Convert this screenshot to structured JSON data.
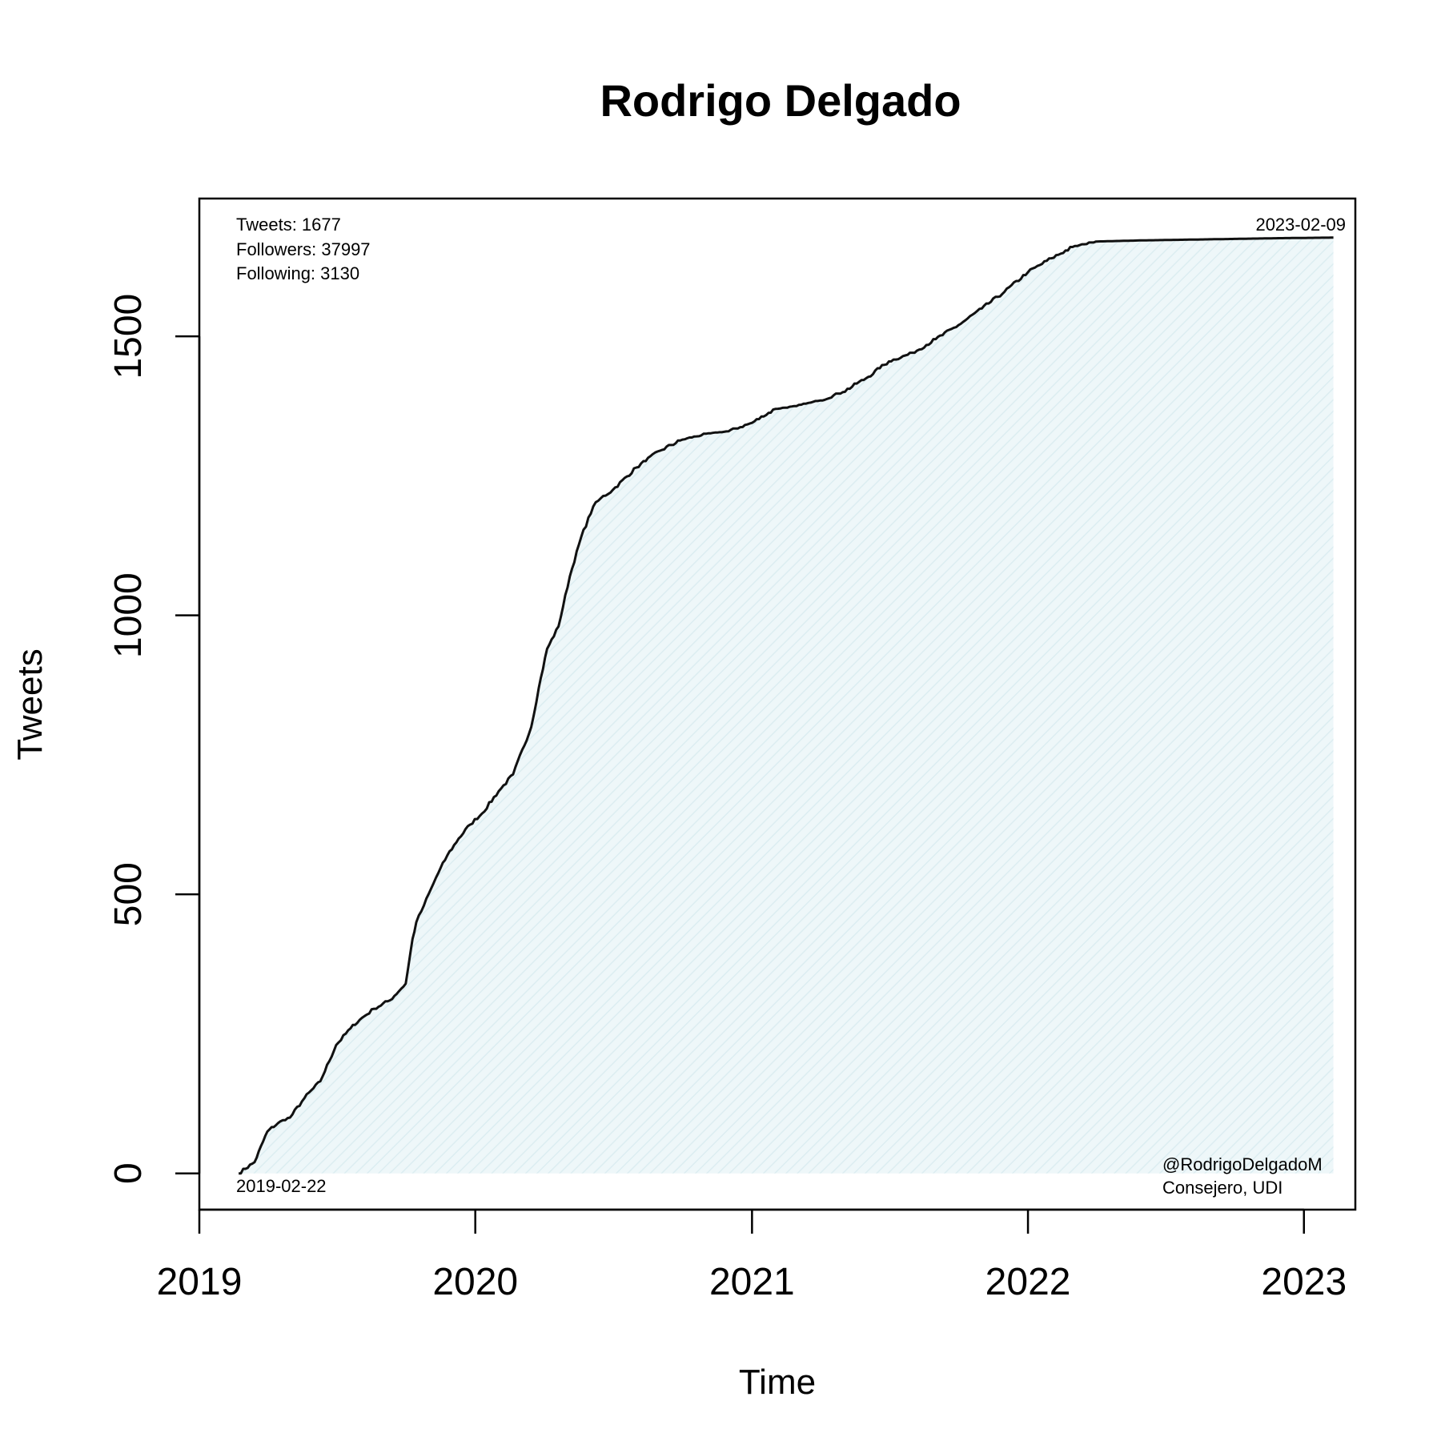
{
  "chart_data": {
    "type": "area",
    "title": "Rodrigo Delgado",
    "xlabel": "Time",
    "ylabel": "Tweets",
    "xlim": [
      "2019-01-01",
      "2023-03-10"
    ],
    "ylim": [
      -65,
      1747
    ],
    "x_ticks": [
      "2019",
      "2020",
      "2021",
      "2022",
      "2023"
    ],
    "y_ticks": [
      0,
      500,
      1000,
      1500
    ],
    "y_tick_labels": [
      "0",
      "500",
      "1000",
      "1500"
    ],
    "grid": false,
    "colors": {
      "line": "#111111",
      "fill": "#eef7f9",
      "hatch": "#ddeef2"
    },
    "series": [
      {
        "x": [
          "2019-02-22",
          "2019-03-15",
          "2019-04-01",
          "2019-04-15",
          "2019-05-01",
          "2019-05-20",
          "2019-06-10",
          "2019-07-01",
          "2019-07-20",
          "2019-08-01",
          "2019-08-20",
          "2019-09-10",
          "2019-10-01",
          "2019-10-10",
          "2019-10-15",
          "2019-10-25",
          "2019-11-10",
          "2019-11-25",
          "2019-12-10",
          "2019-12-25",
          "2020-01-10",
          "2020-02-01",
          "2020-02-20",
          "2020-03-15",
          "2020-03-25",
          "2020-04-05",
          "2020-04-20",
          "2020-05-05",
          "2020-05-20",
          "2020-06-05",
          "2020-06-15",
          "2020-07-01",
          "2020-08-01",
          "2020-09-01",
          "2020-10-01",
          "2020-11-01",
          "2020-12-01",
          "2021-01-01",
          "2021-02-01",
          "2021-03-01",
          "2021-04-01",
          "2021-05-01",
          "2021-06-01",
          "2021-07-01",
          "2021-08-01",
          "2021-09-01",
          "2021-10-01",
          "2021-11-01",
          "2021-12-01",
          "2022-01-01",
          "2022-02-01",
          "2022-03-01",
          "2022-04-01",
          "2022-06-01",
          "2022-09-01",
          "2022-12-01",
          "2023-02-09"
        ],
        "y": [
          0,
          20,
          75,
          90,
          100,
          135,
          165,
          230,
          260,
          275,
          295,
          310,
          340,
          420,
          450,
          480,
          530,
          570,
          600,
          625,
          645,
          685,
          715,
          800,
          870,
          940,
          980,
          1070,
          1140,
          1195,
          1210,
          1225,
          1265,
          1295,
          1315,
          1325,
          1330,
          1345,
          1370,
          1375,
          1385,
          1400,
          1425,
          1455,
          1470,
          1495,
          1520,
          1550,
          1580,
          1615,
          1640,
          1660,
          1670,
          1672,
          1674,
          1676,
          1677
        ]
      }
    ]
  },
  "annotations": {
    "tweets": "Tweets: 1677",
    "followers": "Followers: 37997",
    "following": "Following: 3130",
    "end_date": "2023-02-09",
    "start_date": "2019-02-22",
    "handle": "@RodrigoDelgadoM",
    "role": "Consejero, UDI"
  }
}
